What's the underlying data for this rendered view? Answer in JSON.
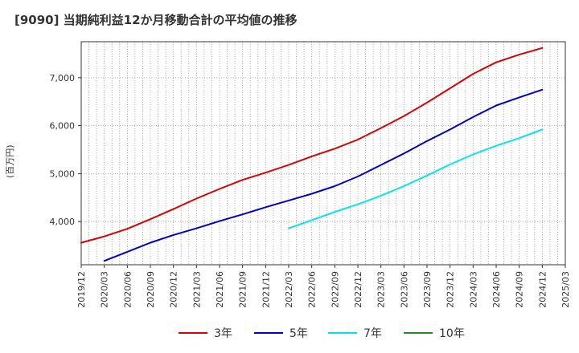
{
  "chart_data": {
    "type": "line",
    "title": "[9090]  当期純利益12か月移動合計の平均値の推移",
    "ylabel": "(百万円)",
    "xlabel": "",
    "ylim": [
      3100,
      7750
    ],
    "yticks": [
      4000,
      5000,
      6000,
      7000
    ],
    "ytick_labels": [
      "4,000",
      "5,000",
      "6,000",
      "7,000"
    ],
    "xticks": [
      "2019/12",
      "2020/03",
      "2020/06",
      "2020/09",
      "2020/12",
      "2021/03",
      "2021/06",
      "2021/09",
      "2021/12",
      "2022/03",
      "2022/06",
      "2022/09",
      "2022/12",
      "2023/03",
      "2023/06",
      "2023/09",
      "2023/12",
      "2024/03",
      "2024/06",
      "2024/09",
      "2024/12",
      "2025/03"
    ],
    "grid": true,
    "legend_position": "bottom",
    "series": [
      {
        "name": "3年",
        "color": "#dd0000",
        "x": [
          "2019/12",
          "2020/03",
          "2020/06",
          "2020/09",
          "2020/12",
          "2021/03",
          "2021/06",
          "2021/09",
          "2021/12",
          "2022/03",
          "2022/06",
          "2022/09",
          "2022/12",
          "2023/03",
          "2023/06",
          "2023/09",
          "2023/12",
          "2024/03",
          "2024/06",
          "2024/09",
          "2024/12"
        ],
        "values": [
          3560,
          3690,
          3850,
          4050,
          4260,
          4480,
          4680,
          4870,
          5020,
          5180,
          5360,
          5520,
          5710,
          5950,
          6200,
          6480,
          6780,
          7080,
          7320,
          7480,
          7620
        ]
      },
      {
        "name": "5年",
        "color": "#0000cc",
        "x": [
          "2020/03",
          "2020/06",
          "2020/09",
          "2020/12",
          "2021/03",
          "2021/06",
          "2021/09",
          "2021/12",
          "2022/03",
          "2022/06",
          "2022/09",
          "2022/12",
          "2023/03",
          "2023/06",
          "2023/09",
          "2023/12",
          "2024/03",
          "2024/06",
          "2024/09",
          "2024/12"
        ],
        "values": [
          3180,
          3370,
          3560,
          3720,
          3860,
          4010,
          4150,
          4300,
          4440,
          4580,
          4740,
          4940,
          5180,
          5420,
          5680,
          5920,
          6180,
          6420,
          6590,
          6750
        ]
      },
      {
        "name": "7年",
        "color": "#00e5ee",
        "x": [
          "2022/03",
          "2022/06",
          "2022/09",
          "2022/12",
          "2023/03",
          "2023/06",
          "2023/09",
          "2023/12",
          "2024/03",
          "2024/06",
          "2024/09",
          "2024/12"
        ],
        "values": [
          3860,
          4030,
          4200,
          4360,
          4540,
          4740,
          4960,
          5190,
          5400,
          5580,
          5740,
          5920
        ]
      },
      {
        "name": "10年",
        "color": "#228b22",
        "x": [],
        "values": []
      }
    ]
  }
}
